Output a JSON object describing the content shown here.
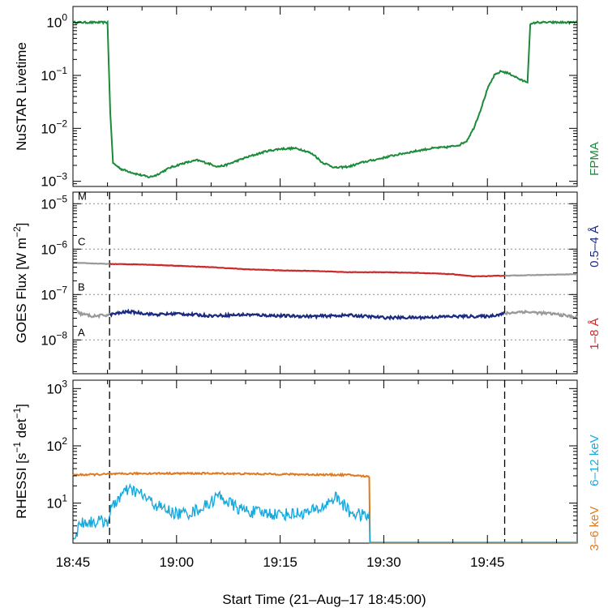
{
  "colors": {
    "fpma": "#1b8a3a",
    "goes_long": "#cc2a2a",
    "goes_short": "#1a2a80",
    "goes_outside": "#999999",
    "rhessi_low": "#e07a1f",
    "rhessi_high": "#18a9dd",
    "class_lines": "#999999"
  },
  "x_axis": {
    "label": "Start Time (21–Aug–17 18:45:00)",
    "ticks": [
      {
        "value": 0,
        "label": "18:45"
      },
      {
        "value": 15,
        "label": "19:00"
      },
      {
        "value": 30,
        "label": "19:15"
      },
      {
        "value": 45,
        "label": "19:30"
      },
      {
        "value": 60,
        "label": "19:45"
      }
    ],
    "range_minutes": [
      0,
      73
    ]
  },
  "markers": {
    "dashed_lines_minutes": [
      5.3,
      62.5
    ]
  },
  "chart_data": [
    {
      "type": "line",
      "panel": "nustar",
      "ylabel": "NuSTAR Livetime",
      "ylim": [
        0.0008,
        2
      ],
      "yscale": "log",
      "yticks": [
        {
          "value": 1,
          "base": "10",
          "exp": "0"
        },
        {
          "value": 0.1,
          "base": "10",
          "exp": "-1"
        },
        {
          "value": 0.01,
          "base": "10",
          "exp": "-2"
        },
        {
          "value": 0.001,
          "base": "10",
          "exp": "-3"
        }
      ],
      "series": [
        {
          "name": "FPMA",
          "x": [
            0,
            5.0,
            5.4,
            5.8,
            7,
            9,
            11,
            12,
            14,
            16,
            18,
            19,
            21,
            22,
            25,
            28,
            30,
            32,
            33,
            34,
            35,
            36,
            38,
            40,
            42,
            44,
            46,
            48,
            50,
            51,
            52,
            53,
            54,
            55,
            56,
            57,
            58,
            59,
            60,
            61,
            62,
            63,
            64,
            65,
            65.8,
            66.2,
            67,
            73
          ],
          "y": [
            1.0,
            1.0,
            0.02,
            0.0022,
            0.0017,
            0.0014,
            0.0012,
            0.0013,
            0.0018,
            0.0022,
            0.0025,
            0.0023,
            0.0019,
            0.002,
            0.0028,
            0.0037,
            0.0041,
            0.0042,
            0.004,
            0.0036,
            0.0031,
            0.0023,
            0.0018,
            0.0019,
            0.0023,
            0.0026,
            0.003,
            0.0034,
            0.0038,
            0.004,
            0.0042,
            0.0043,
            0.0044,
            0.0046,
            0.0049,
            0.0058,
            0.01,
            0.022,
            0.055,
            0.1,
            0.12,
            0.11,
            0.095,
            0.08,
            0.075,
            0.9,
            1.0,
            1.0
          ]
        }
      ]
    },
    {
      "type": "line",
      "panel": "goes",
      "ylabel": "GOES Flux [W m⁻²]",
      "ylim": [
        1.8e-09,
        1.8e-05
      ],
      "yscale": "log",
      "yticks": [
        {
          "value": 1e-05,
          "base": "10",
          "exp": "-5"
        },
        {
          "value": 1e-06,
          "base": "10",
          "exp": "-6"
        },
        {
          "value": 1e-07,
          "base": "10",
          "exp": "-7"
        },
        {
          "value": 1e-08,
          "base": "10",
          "exp": "-8"
        }
      ],
      "flare_classes": [
        {
          "label": "M",
          "value": 1e-05
        },
        {
          "label": "C",
          "value": 1e-06
        },
        {
          "label": "B",
          "value": 1e-07
        },
        {
          "label": "A",
          "value": 1e-08
        }
      ],
      "series": [
        {
          "name": "1–8 Å",
          "x": [
            0,
            5.3,
            10,
            15,
            20,
            25,
            30,
            35,
            40,
            45,
            50,
            55,
            58,
            62.5,
            73
          ],
          "y": [
            5e-07,
            4.7e-07,
            4.6e-07,
            4.3e-07,
            4e-07,
            3.6e-07,
            3.4e-07,
            3.3e-07,
            3.1e-07,
            3.1e-07,
            3e-07,
            2.8e-07,
            2.5e-07,
            2.6e-07,
            2.8e-07
          ]
        },
        {
          "name": "0.5–4 Å",
          "x": [
            0,
            1,
            3,
            5.3,
            8,
            12,
            15,
            20,
            25,
            30,
            35,
            40,
            45,
            50,
            55,
            60,
            62.5,
            65,
            70,
            73
          ],
          "y": [
            5e-08,
            3.8e-08,
            3.3e-08,
            3.6e-08,
            4.2e-08,
            3.6e-08,
            3.8e-08,
            3.4e-08,
            3.6e-08,
            3.4e-08,
            3.3e-08,
            3.5e-08,
            3.1e-08,
            3.1e-08,
            3.3e-08,
            3.3e-08,
            3.8e-08,
            4.2e-08,
            3.7e-08,
            3.1e-08
          ]
        }
      ]
    },
    {
      "type": "line",
      "panel": "rhessi",
      "ylabel": "RHESSI [s⁻¹ det⁻¹]",
      "ylim": [
        2.0,
        1400
      ],
      "yscale": "log",
      "yticks": [
        {
          "value": 1000,
          "base": "10",
          "exp": "3"
        },
        {
          "value": 100,
          "base": "10",
          "exp": "2"
        },
        {
          "value": 10,
          "base": "10",
          "exp": "1"
        }
      ],
      "series": [
        {
          "name": "3–6 keV",
          "x": [
            0,
            10,
            20,
            30,
            40,
            42.9,
            43.0,
            73
          ],
          "y": [
            31,
            33,
            33,
            32,
            31,
            29,
            2.05,
            2.05
          ]
        },
        {
          "name": "6‒12 keV",
          "x": [
            0,
            0.5,
            1,
            3,
            5,
            5.5,
            6.5,
            8,
            9,
            10,
            11,
            13,
            15,
            17,
            18,
            19,
            20,
            21,
            22,
            23,
            24,
            26,
            28,
            30,
            32,
            34,
            36,
            37,
            38,
            39,
            40,
            42,
            42.9,
            43.0,
            73
          ],
          "y": [
            2.6,
            2.8,
            4.6,
            4.7,
            4.9,
            7.5,
            12,
            17,
            16,
            14,
            11,
            8.0,
            6.5,
            6.8,
            7.7,
            8.6,
            10.5,
            13.5,
            11.5,
            9.5,
            8.0,
            7.0,
            6.7,
            6.4,
            6.5,
            6.8,
            8.2,
            10.5,
            12.8,
            10,
            7.0,
            6.0,
            6.0,
            2.05,
            2.05
          ]
        }
      ]
    }
  ]
}
